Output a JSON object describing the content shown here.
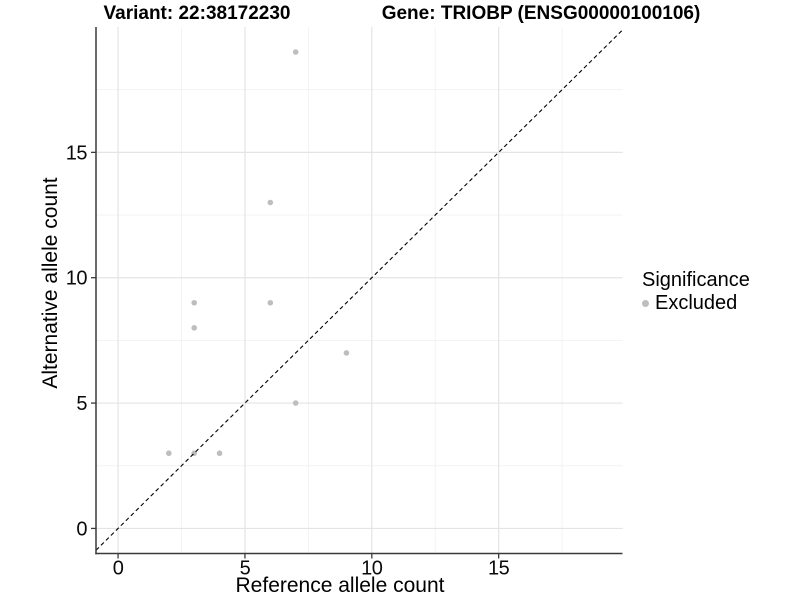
{
  "titles": {
    "left": "Variant: 22:38172230",
    "right": "Gene: TRIOBP (ENSG00000100106)"
  },
  "colors": {
    "background": "#ffffff",
    "text": "#000000",
    "grid_major": "#e4e4e4",
    "grid_minor": "#f2f2f2",
    "axis_line": "#3a3a3a",
    "point": "#bebebe",
    "reference_line": "#000000"
  },
  "chart_data": {
    "type": "scatter",
    "title_left": "Variant: 22:38172230",
    "title_right": "Gene: TRIOBP (ENSG00000100106)",
    "xlabel": "Reference allele count",
    "ylabel": "Alternative allele count",
    "series": [
      {
        "name": "Excluded",
        "color": "#bebebe",
        "points": [
          [
            2,
            3
          ],
          [
            3,
            3
          ],
          [
            4,
            3
          ],
          [
            3,
            8
          ],
          [
            3,
            9
          ],
          [
            6,
            9
          ],
          [
            6,
            13
          ],
          [
            7,
            5
          ],
          [
            7,
            19
          ],
          [
            9,
            7
          ]
        ]
      }
    ],
    "x_ticks": [
      0,
      5,
      10,
      15
    ],
    "x_tick_labels": [
      "0",
      "5",
      "10",
      "15"
    ],
    "y_ticks": [
      0,
      5,
      10,
      15
    ],
    "y_tick_labels": [
      "0",
      "5",
      "10",
      "15"
    ],
    "x_minor": [
      2.5,
      7.5,
      12.5,
      17.5
    ],
    "y_minor": [
      2.5,
      7.5,
      12.5,
      17.5
    ],
    "xlim": [
      -0.87,
      19.88
    ],
    "ylim": [
      -1,
      20
    ],
    "reference_line": {
      "type": "identity y=x",
      "style": "dashed",
      "color": "#000000"
    },
    "grid": true,
    "legend": {
      "title": "Significance",
      "position": "right",
      "items": [
        {
          "label": "Excluded",
          "color": "#bebebe"
        }
      ]
    }
  }
}
